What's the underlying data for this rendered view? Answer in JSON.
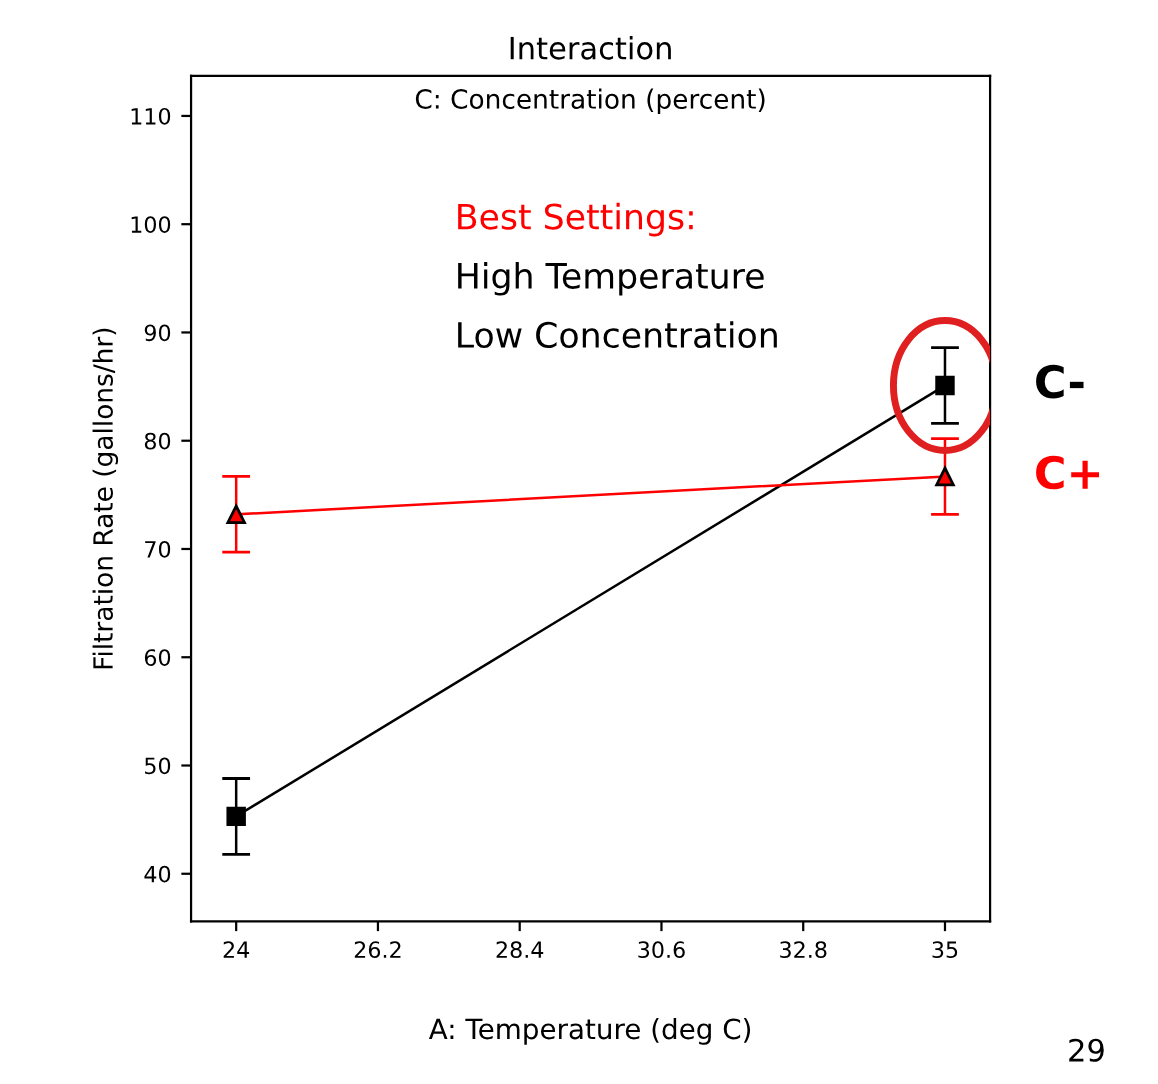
{
  "chart_data": {
    "type": "line",
    "title": "Interaction",
    "subtitle": "C: Concentration (percent)",
    "xlabel": "A: Temperature (deg C)",
    "ylabel": "Filtration Rate (gallons/hr)",
    "x": [
      24,
      35
    ],
    "series": [
      {
        "name": "C-",
        "color": "#000000",
        "marker": "square",
        "values": [
          45.3,
          85.1
        ],
        "errors": [
          3.5,
          3.5
        ]
      },
      {
        "name": "C+",
        "color": "#ff0000",
        "marker": "triangle",
        "values": [
          73.2,
          76.7
        ],
        "errors": [
          3.5,
          3.5
        ]
      }
    ],
    "xlim": [
      23.3,
      35.7
    ],
    "ylim": [
      35.6,
      113.7
    ],
    "xticks": [
      24,
      26.2,
      28.4,
      30.6,
      32.8,
      35
    ],
    "yticks": [
      40,
      50,
      60,
      70,
      80,
      90,
      100,
      110
    ],
    "annotations": [
      "Best Settings:",
      "High Temperature",
      "Low Concentration",
      "29"
    ],
    "grid": false,
    "legend": false,
    "line_style": "solid"
  }
}
